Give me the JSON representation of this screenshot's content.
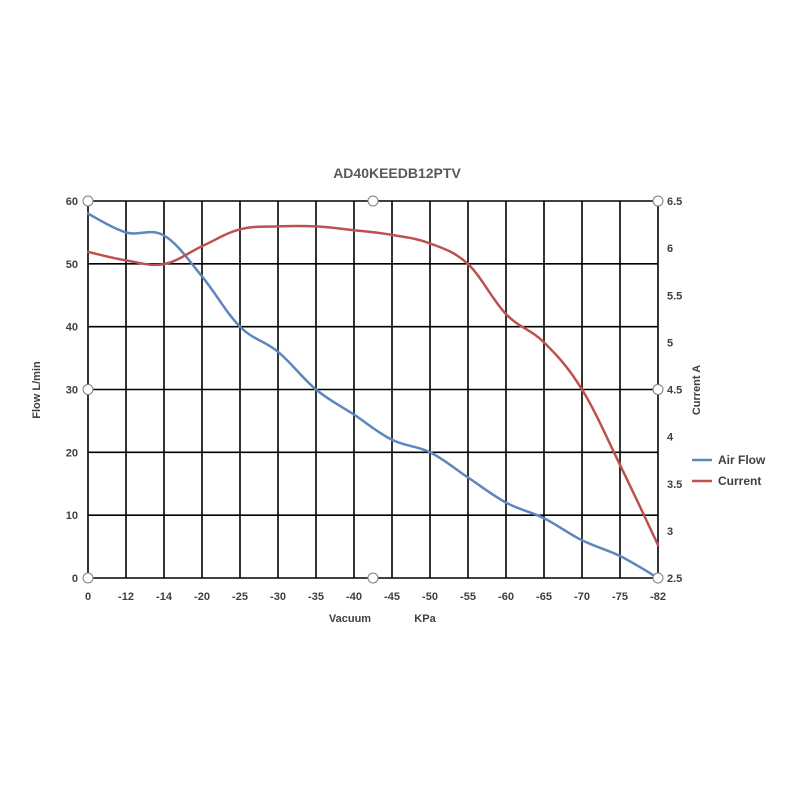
{
  "chart_data": {
    "type": "line",
    "title": "AD40KEEDB12PTV",
    "categories": [
      "0",
      "-12",
      "-14",
      "-20",
      "-25",
      "-30",
      "-35",
      "-40",
      "-45",
      "-50",
      "-55",
      "-60",
      "-65",
      "-70",
      "-75",
      "-82"
    ],
    "xlabel": "Vacuum",
    "xlabel_unit": "KPa",
    "ylabel": "Flow  L/min",
    "y2label": "Current  A",
    "ylim": [
      0,
      60
    ],
    "y_ticks": [
      0,
      10,
      20,
      30,
      40,
      50,
      60
    ],
    "y2lim": [
      2.5,
      6.5
    ],
    "y2_ticks": [
      "2.5",
      "3",
      "3.5",
      "4",
      "4.5",
      "5",
      "5.5",
      "6",
      "6.5"
    ],
    "grid": true,
    "legend_position": "right",
    "series": [
      {
        "name": "Air Flow",
        "axis": "left",
        "color": "#5b87bd",
        "values": [
          58,
          55,
          54.5,
          48,
          40,
          36,
          30,
          26,
          22,
          20,
          16,
          12,
          9.5,
          6,
          3.5,
          0
        ]
      },
      {
        "name": "Current",
        "axis": "right",
        "color": "#bd5150",
        "values": [
          5.96,
          5.87,
          5.83,
          6.02,
          6.2,
          6.23,
          6.23,
          6.19,
          6.14,
          6.05,
          5.83,
          5.3,
          5.0,
          4.5,
          3.7,
          2.85
        ]
      }
    ]
  }
}
